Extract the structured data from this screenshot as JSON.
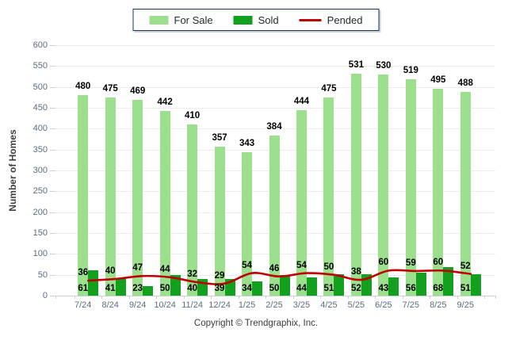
{
  "legend": {
    "items": [
      {
        "label": "For Sale"
      },
      {
        "label": "Sold"
      },
      {
        "label": "Pended"
      }
    ]
  },
  "ylabel": "Number of Homes",
  "footer": "Copyright © Trendgraphix, Inc.",
  "colors": {
    "for_sale": "#9CDF8D",
    "sold": "#12A01E",
    "pended": "#C00000",
    "legend_border": "#17375E",
    "grid": "#ECECEC",
    "axis": "#C9CFD6",
    "tick_text": "#5D6D7E",
    "value_text": "#000000"
  },
  "chart_data": {
    "type": "bar",
    "categories": [
      "7/24",
      "8/24",
      "9/24",
      "10/24",
      "11/24",
      "12/24",
      "1/25",
      "2/25",
      "3/25",
      "4/25",
      "5/25",
      "6/25",
      "7/25",
      "8/25",
      "9/25"
    ],
    "series": [
      {
        "name": "For Sale",
        "type": "bar",
        "color": "#9CDF8D",
        "values": [
          480,
          475,
          469,
          442,
          410,
          357,
          343,
          384,
          444,
          475,
          531,
          530,
          519,
          495,
          488
        ]
      },
      {
        "name": "Sold",
        "type": "bar",
        "color": "#12A01E",
        "values": [
          61,
          41,
          23,
          50,
          40,
          39,
          34,
          50,
          44,
          51,
          52,
          43,
          56,
          68,
          51
        ]
      },
      {
        "name": "Pended",
        "type": "line",
        "color": "#C00000",
        "values": [
          36,
          40,
          47,
          44,
          32,
          29,
          54,
          46,
          54,
          50,
          38,
          60,
          59,
          60,
          52
        ]
      }
    ],
    "ylim": [
      0,
      600
    ],
    "ytick_interval": 50,
    "grid": true,
    "legend_position": "top-center",
    "ylabel": "Number of Homes"
  }
}
